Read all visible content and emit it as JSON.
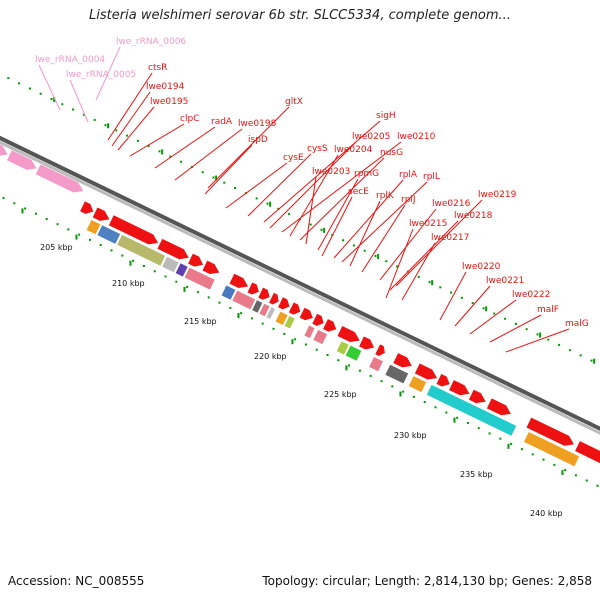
{
  "title": "Listeria welshimeri serovar 6b str. SLCC5334, complete genom...",
  "accession": "Accession: NC_008555",
  "topology": "Topology: circular; Length: 2,814,130 bp; Genes: 2,858",
  "colors": {
    "cds": "#ee1111",
    "rrna": "#f49ac8",
    "backbone_dark": "#555555",
    "backbone_light": "#bbbbbb",
    "tick": "#009900"
  },
  "ticks": [
    {
      "label": "205 kbp"
    },
    {
      "label": "210 kbp"
    },
    {
      "label": "215 kbp"
    },
    {
      "label": "220 kbp"
    },
    {
      "label": "225 kbp"
    },
    {
      "label": "230 kbp"
    },
    {
      "label": "235 kbp"
    },
    {
      "label": "240 kbp"
    }
  ],
  "labels": [
    {
      "text": "lwe_rRNA_0006",
      "kind": "rrna"
    },
    {
      "text": "lwe_rRNA_0004",
      "kind": "rrna"
    },
    {
      "text": "lwe_rRNA_0005",
      "kind": "rrna"
    },
    {
      "text": "ctsR",
      "kind": "cds"
    },
    {
      "text": "lwe0194",
      "kind": "cds"
    },
    {
      "text": "lwe0195",
      "kind": "cds"
    },
    {
      "text": "clpC",
      "kind": "cds"
    },
    {
      "text": "radA",
      "kind": "cds"
    },
    {
      "text": "lwe0198",
      "kind": "cds"
    },
    {
      "text": "gltX",
      "kind": "cds"
    },
    {
      "text": "ispD",
      "kind": "cds"
    },
    {
      "text": "cysE",
      "kind": "cds"
    },
    {
      "text": "cysS",
      "kind": "cds"
    },
    {
      "text": "sigH",
      "kind": "cds"
    },
    {
      "text": "lwe0205",
      "kind": "cds"
    },
    {
      "text": "lwe0210",
      "kind": "cds"
    },
    {
      "text": "lwe0204",
      "kind": "cds"
    },
    {
      "text": "nusG",
      "kind": "cds"
    },
    {
      "text": "lwe0203",
      "kind": "cds"
    },
    {
      "text": "rpmG",
      "kind": "cds"
    },
    {
      "text": "secE",
      "kind": "cds"
    },
    {
      "text": "rplA",
      "kind": "cds"
    },
    {
      "text": "rplL",
      "kind": "cds"
    },
    {
      "text": "rplK",
      "kind": "cds"
    },
    {
      "text": "rplJ",
      "kind": "cds"
    },
    {
      "text": "lwe0219",
      "kind": "cds"
    },
    {
      "text": "lwe0216",
      "kind": "cds"
    },
    {
      "text": "lwe0218",
      "kind": "cds"
    },
    {
      "text": "lwe0215",
      "kind": "cds"
    },
    {
      "text": "lwe0217",
      "kind": "cds"
    },
    {
      "text": "lwe0220",
      "kind": "cds"
    },
    {
      "text": "lwe0221",
      "kind": "cds"
    },
    {
      "text": "lwe0222",
      "kind": "cds"
    },
    {
      "text": "malF",
      "kind": "cds"
    },
    {
      "text": "malG",
      "kind": "cds"
    }
  ]
}
